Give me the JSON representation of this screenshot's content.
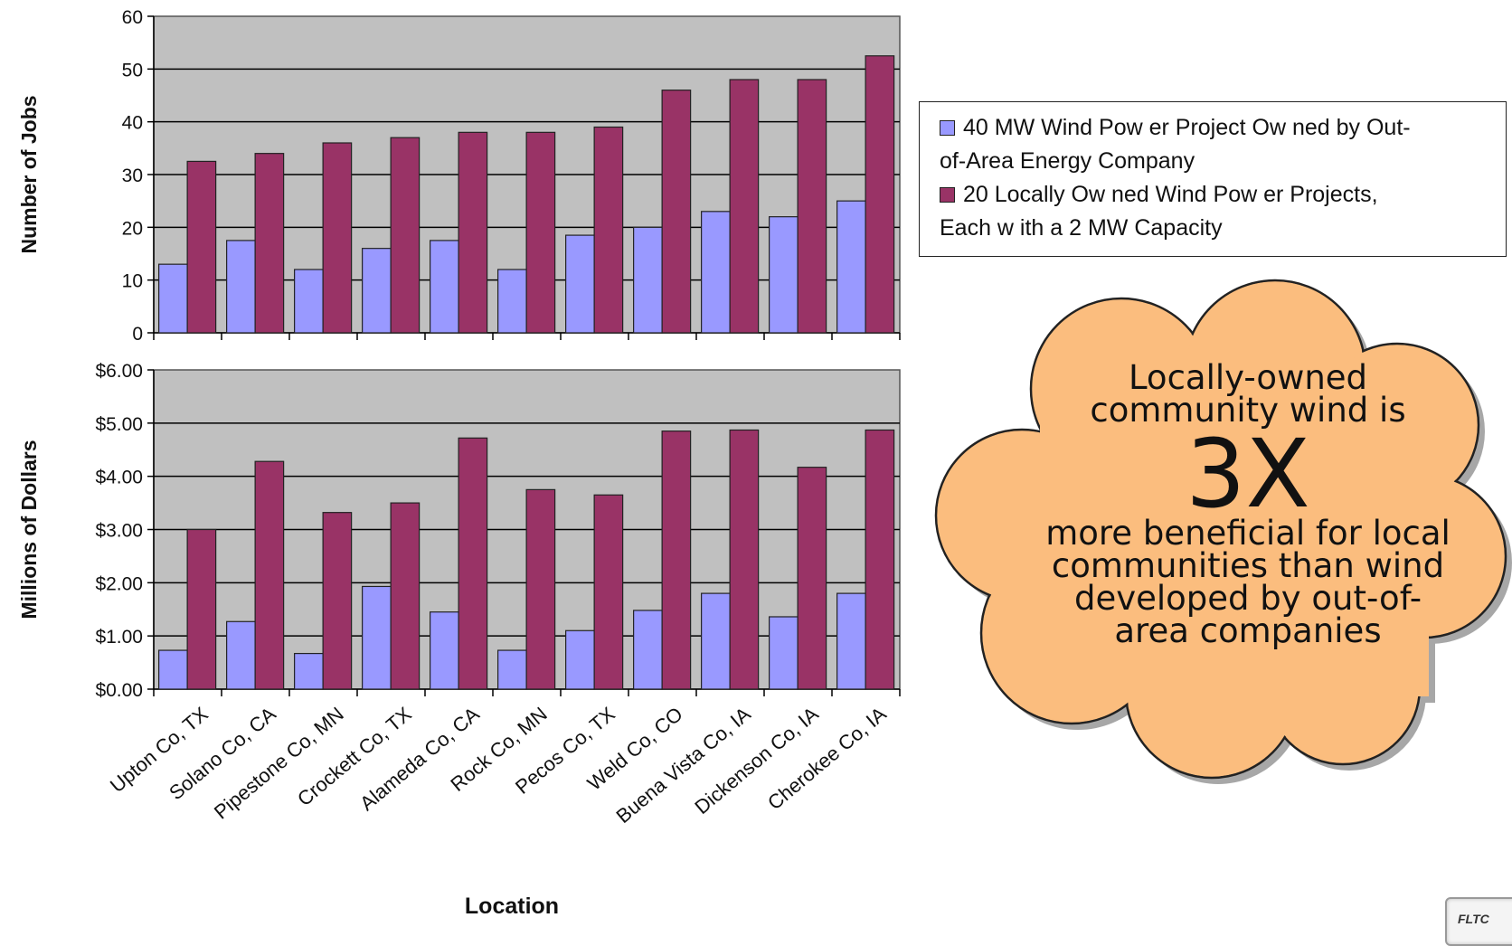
{
  "chart_data": [
    {
      "type": "bar",
      "ylabel": "Number of Jobs",
      "xlabel": "Location",
      "ylim": [
        0,
        60
      ],
      "yticks": [
        0,
        10,
        20,
        30,
        40,
        50,
        60
      ],
      "ytick_labels": [
        "0",
        "10",
        "20",
        "30",
        "40",
        "50",
        "60"
      ],
      "grid": true,
      "plot_background": "#c0c0c0",
      "categories": [
        "Upton Co, TX",
        "Solano Co, CA",
        "Pipestone Co, MN",
        "Crockett Co, TX",
        "Alameda Co, CA",
        "Rock Co, MN",
        "Pecos Co, TX",
        "Weld Co, CO",
        "Buena Vista Co, IA",
        "Dickenson Co, IA",
        "Cherokee Co, IA"
      ],
      "series": [
        {
          "name": "40 MW Wind Power Project Owned by Out-of-Area Energy Company",
          "color": "#9999ff",
          "values": [
            13,
            17.5,
            12,
            16,
            17.5,
            12,
            18.5,
            20,
            23,
            22,
            25
          ]
        },
        {
          "name": "20 Locally Owned Wind Power Projects, Each with a 2 MW Capacity",
          "color": "#993366",
          "values": [
            32.5,
            34,
            36,
            37,
            38,
            38,
            39,
            46,
            48,
            48,
            52.5
          ]
        }
      ]
    },
    {
      "type": "bar",
      "ylabel": "Millions of Dollars",
      "xlabel": "Location",
      "ylim": [
        0,
        6
      ],
      "yticks": [
        0,
        1,
        2,
        3,
        4,
        5,
        6
      ],
      "ytick_labels": [
        "$0.00",
        "$1.00",
        "$2.00",
        "$3.00",
        "$4.00",
        "$5.00",
        "$6.00"
      ],
      "grid": true,
      "plot_background": "#c0c0c0",
      "categories": [
        "Upton Co, TX",
        "Solano Co, CA",
        "Pipestone Co, MN",
        "Crockett Co, TX",
        "Alameda Co, CA",
        "Rock Co, MN",
        "Pecos Co, TX",
        "Weld Co, CO",
        "Buena Vista Co, IA",
        "Dickenson Co, IA",
        "Cherokee Co, IA"
      ],
      "series": [
        {
          "name": "40 MW Wind Power Project Owned by Out-of-Area Energy Company",
          "color": "#9999ff",
          "values": [
            0.73,
            1.27,
            0.67,
            1.93,
            1.45,
            0.73,
            1.1,
            1.48,
            1.8,
            1.36,
            1.8
          ]
        },
        {
          "name": "20 Locally Owned Wind Power Projects, Each with a 2 MW Capacity",
          "color": "#993366",
          "values": [
            3.0,
            4.28,
            3.32,
            3.5,
            4.72,
            3.75,
            3.65,
            4.85,
            4.87,
            4.17,
            4.87
          ]
        }
      ]
    }
  ],
  "legend": {
    "position": "right",
    "items": [
      {
        "line1": "40 MW Wind Pow er Project Ow ned by Out-",
        "line2": "of-Area Energy Company",
        "color": "#9999ff"
      },
      {
        "line1": "20 Locally Ow ned Wind Pow er Projects,",
        "line2": "Each w ith a 2 MW Capacity",
        "color": "#993366"
      }
    ]
  },
  "callout": {
    "shape": "cloud",
    "fill": "#fbbd7e",
    "line1": "Locally-owned",
    "line2": "community wind is",
    "big": "3X",
    "line3": "more beneficial for local",
    "line4": "communities than wind",
    "line5": "developed by out-of-",
    "line6": "area companies"
  },
  "corner": {
    "text": "FLTC"
  }
}
